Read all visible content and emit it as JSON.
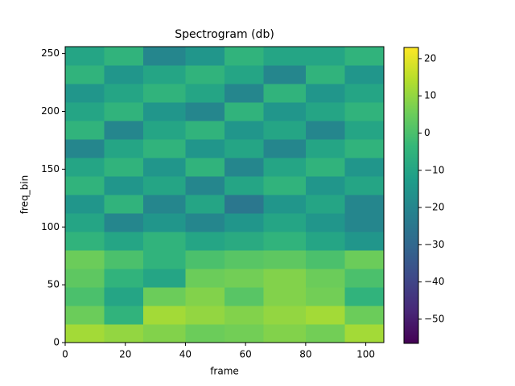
{
  "chart_data": {
    "type": "heatmap",
    "title": "Spectrogram (db)",
    "x_label": "frame",
    "y_label": "freq_bin",
    "colormap": "viridis",
    "x_edges": [
      0,
      13,
      26,
      40,
      53,
      66,
      80,
      93,
      106
    ],
    "y_edges": [
      0,
      16,
      32,
      48,
      64,
      80,
      96,
      112,
      128,
      144,
      160,
      176,
      192,
      208,
      224,
      240,
      256
    ],
    "z": [
      [
        12,
        10,
        8,
        5,
        6,
        8,
        6,
        12
      ],
      [
        5,
        -5,
        12,
        10,
        8,
        10,
        12,
        5
      ],
      [
        0,
        -10,
        5,
        8,
        2,
        8,
        6,
        -5
      ],
      [
        3,
        -5,
        -10,
        5,
        6,
        8,
        5,
        0
      ],
      [
        5,
        0,
        -5,
        0,
        2,
        3,
        0,
        5
      ],
      [
        -5,
        -10,
        -5,
        -10,
        -8,
        -5,
        -10,
        -15
      ],
      [
        -10,
        -20,
        -15,
        -20,
        -15,
        -10,
        -15,
        -20
      ],
      [
        -15,
        -5,
        -20,
        -10,
        -25,
        -15,
        -10,
        -20
      ],
      [
        -5,
        -15,
        -10,
        -20,
        -10,
        -5,
        -15,
        -10
      ],
      [
        -10,
        -5,
        -15,
        -5,
        -20,
        -10,
        -5,
        -15
      ],
      [
        -20,
        -10,
        -5,
        -15,
        -10,
        -20,
        -10,
        -5
      ],
      [
        -5,
        -20,
        -10,
        -5,
        -15,
        -10,
        -20,
        -10
      ],
      [
        -10,
        -5,
        -15,
        -20,
        -5,
        -15,
        -10,
        -5
      ],
      [
        -15,
        -10,
        -5,
        -10,
        -20,
        -5,
        -15,
        -10
      ],
      [
        -5,
        -15,
        -10,
        -5,
        -10,
        -20,
        -5,
        -15
      ],
      [
        -10,
        -5,
        -20,
        -15,
        -5,
        -10,
        -10,
        -5
      ]
    ],
    "xlim": [
      0,
      106
    ],
    "ylim": [
      0,
      256
    ],
    "clim": [
      -56.5,
      23
    ],
    "xticks": [
      0,
      20,
      40,
      60,
      80,
      100
    ],
    "yticks": [
      0,
      50,
      100,
      150,
      200,
      250
    ],
    "cticks": [
      20,
      10,
      0,
      {
        "value": -10,
        "label": "−10"
      },
      {
        "value": -20,
        "label": "−20"
      },
      {
        "value": -30,
        "label": "−30"
      },
      {
        "value": -40,
        "label": "−40"
      },
      {
        "value": -50,
        "label": "−50"
      }
    ]
  }
}
